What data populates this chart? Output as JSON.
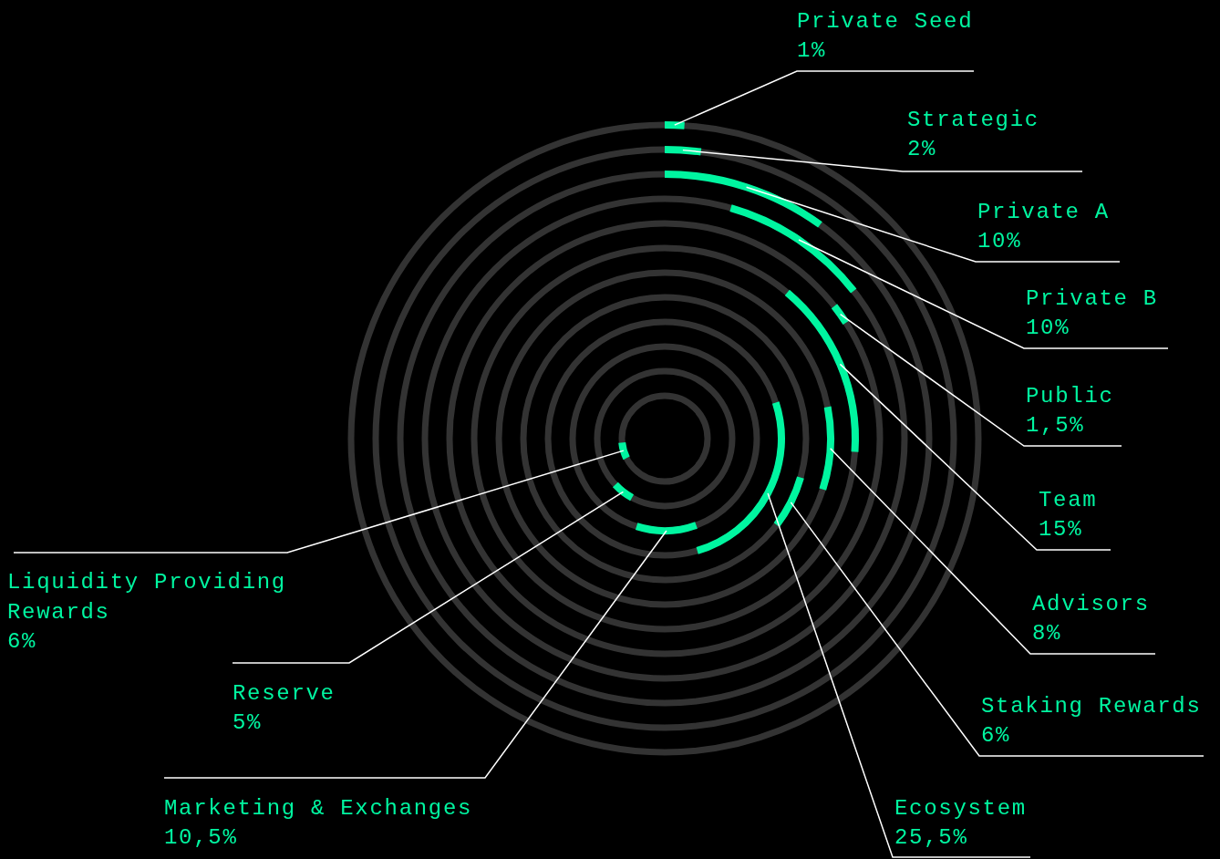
{
  "chart_data": {
    "type": "other",
    "categories": [
      "Private Seed",
      "Strategic",
      "Private A",
      "Private B",
      "Public",
      "Team",
      "Advisors",
      "Staking Rewards",
      "Ecosystem",
      "Marketing & Exchanges",
      "Reserve",
      "Liquidity Providing Rewards"
    ],
    "values": [
      1,
      2,
      10,
      10,
      1.5,
      15,
      8,
      6,
      25.5,
      10.5,
      5,
      6
    ],
    "value_labels": [
      "1%",
      "2%",
      "10%",
      "10%",
      "1,5%",
      "15%",
      "8%",
      "6%",
      "25,5%",
      "10,5%",
      "5%",
      "6%"
    ],
    "color": "#00f5a0"
  }
}
